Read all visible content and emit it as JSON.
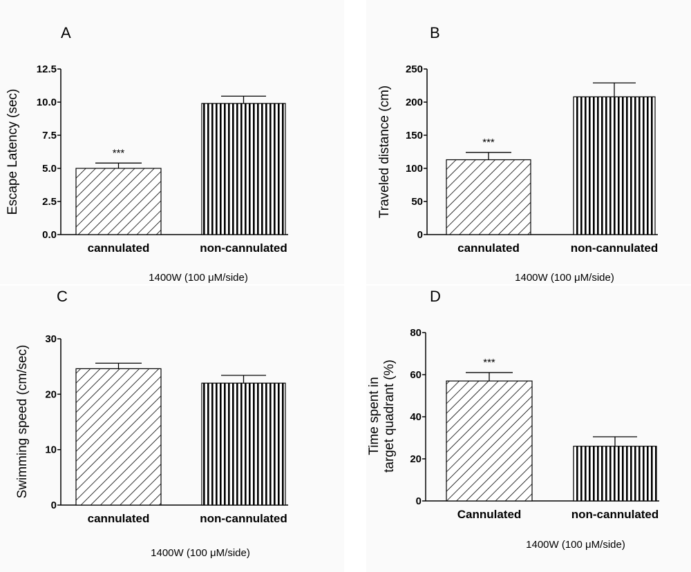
{
  "panels": [
    {
      "letter": "A",
      "treatment": "1400W (100  μM/side)"
    },
    {
      "letter": "B",
      "treatment": "1400W (100  μM/side)"
    },
    {
      "letter": "C",
      "treatment": "1400W (100  μM/side)"
    },
    {
      "letter": "D",
      "treatment": "1400W (100  μM/side)"
    }
  ],
  "chart_data": [
    {
      "type": "bar",
      "panel": "A",
      "ylabel": "Escape Latency (sec)",
      "ylim": [
        0,
        12.5
      ],
      "yticks": [
        "0.0",
        "2.5",
        "5.0",
        "7.5",
        "10.0",
        "12.5"
      ],
      "ytick_values": [
        0,
        2.5,
        5,
        7.5,
        10,
        12.5
      ],
      "categories": [
        "cannulated",
        "non-cannulated"
      ],
      "values": [
        5.0,
        9.9
      ],
      "errors": [
        0.4,
        0.55
      ],
      "annotations": [
        "***",
        ""
      ],
      "patterns": [
        "diagonal",
        "vertical"
      ]
    },
    {
      "type": "bar",
      "panel": "B",
      "ylabel": "Traveled distance (cm)",
      "ylim": [
        0,
        250
      ],
      "yticks": [
        "0",
        "50",
        "100",
        "150",
        "200",
        "250"
      ],
      "ytick_values": [
        0,
        50,
        100,
        150,
        200,
        250
      ],
      "categories": [
        "cannulated",
        "non-cannulated"
      ],
      "values": [
        113,
        208
      ],
      "errors": [
        11,
        21
      ],
      "annotations": [
        "***",
        ""
      ],
      "patterns": [
        "diagonal",
        "vertical"
      ]
    },
    {
      "type": "bar",
      "panel": "C",
      "ylabel": "Swimming speed (cm/sec)",
      "ylim": [
        0,
        30
      ],
      "yticks": [
        "0",
        "10",
        "20",
        "30"
      ],
      "ytick_values": [
        0,
        10,
        20,
        30
      ],
      "categories": [
        "cannulated",
        "non-cannulated"
      ],
      "values": [
        24.6,
        22.0
      ],
      "errors": [
        1.0,
        1.4
      ],
      "annotations": [
        "",
        ""
      ],
      "patterns": [
        "diagonal",
        "vertical"
      ]
    },
    {
      "type": "bar",
      "panel": "D",
      "ylabel": [
        "Time spent in",
        "target quadrant (%)"
      ],
      "ylim": [
        0,
        80
      ],
      "yticks": [
        "0",
        "20",
        "40",
        "60",
        "80"
      ],
      "ytick_values": [
        0,
        20,
        40,
        60,
        80
      ],
      "categories": [
        "Cannulated",
        "non-cannulated"
      ],
      "values": [
        57,
        26
      ],
      "errors": [
        4,
        4.5
      ],
      "annotations": [
        "***",
        ""
      ],
      "patterns": [
        "diagonal",
        "vertical"
      ]
    }
  ]
}
